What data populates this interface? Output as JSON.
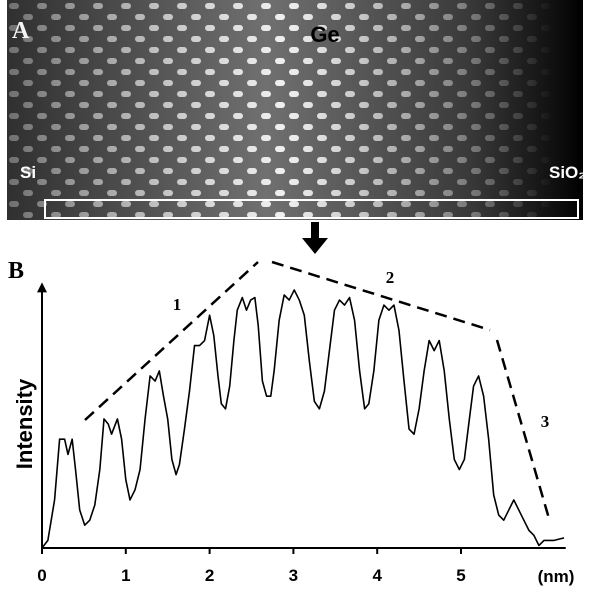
{
  "panel_a": {
    "label": "A",
    "annotations": [
      "Ge",
      "Si",
      "SiO₂"
    ]
  },
  "chart_data": {
    "type": "line",
    "panel_label": "B",
    "ylabel": "Intensity",
    "xlabel": "(nm)",
    "x": [
      0,
      0.07,
      0.15,
      0.21,
      0.27,
      0.31,
      0.36,
      0.4,
      0.45,
      0.51,
      0.57,
      0.63,
      0.69,
      0.74,
      0.79,
      0.83,
      0.9,
      0.95,
      1.0,
      1.05,
      1.11,
      1.17,
      1.23,
      1.29,
      1.35,
      1.4,
      1.45,
      1.5,
      1.55,
      1.6,
      1.64,
      1.7,
      1.76,
      1.82,
      1.88,
      1.94,
      2.0,
      2.05,
      2.1,
      2.14,
      2.19,
      2.24,
      2.29,
      2.33,
      2.39,
      2.44,
      2.49,
      2.54,
      2.58,
      2.63,
      2.68,
      2.73,
      2.77,
      2.83,
      2.89,
      2.95,
      3.01,
      3.07,
      3.13,
      3.19,
      3.25,
      3.31,
      3.37,
      3.43,
      3.49,
      3.55,
      3.61,
      3.67,
      3.73,
      3.79,
      3.85,
      3.9,
      3.96,
      4.02,
      4.08,
      4.14,
      4.2,
      4.26,
      4.32,
      4.38,
      4.44,
      4.5,
      4.56,
      4.62,
      4.68,
      4.74,
      4.8,
      4.86,
      4.92,
      4.98,
      5.04,
      5.1,
      5.15,
      5.21,
      5.27,
      5.33,
      5.39,
      5.45,
      5.51,
      5.57,
      5.63,
      5.69,
      5.75,
      5.81,
      5.87,
      5.93,
      5.99,
      6.11,
      6.23
    ],
    "series": [
      {
        "color": "#000000",
        "values": [
          0,
          3,
          19,
          43,
          43,
          37,
          43,
          31,
          15,
          9,
          11,
          17,
          31,
          51,
          49,
          45,
          51,
          43,
          27,
          19,
          23,
          31,
          51,
          68,
          66,
          70,
          60,
          51,
          35,
          29,
          33,
          47,
          62,
          80,
          80,
          82,
          92,
          84,
          68,
          57,
          55,
          64,
          82,
          94,
          99,
          94,
          98,
          99,
          88,
          66,
          60,
          60,
          70,
          90,
          100,
          98,
          102,
          98,
          92,
          74,
          58,
          55,
          62,
          78,
          94,
          98,
          96,
          99,
          90,
          70,
          55,
          57,
          70,
          90,
          96,
          94,
          96,
          86,
          66,
          47,
          45,
          55,
          70,
          82,
          78,
          82,
          70,
          51,
          35,
          31,
          35,
          51,
          64,
          68,
          60,
          43,
          21,
          13,
          11,
          15,
          19,
          15,
          11,
          7,
          5,
          1,
          3,
          3,
          4
        ]
      }
    ],
    "xlim": [
      0,
      6.25
    ],
    "ylim": [
      0,
      105
    ],
    "xticks": [
      0,
      1,
      2,
      3,
      4,
      5
    ],
    "annotations": [
      "1",
      "2",
      "3"
    ]
  }
}
